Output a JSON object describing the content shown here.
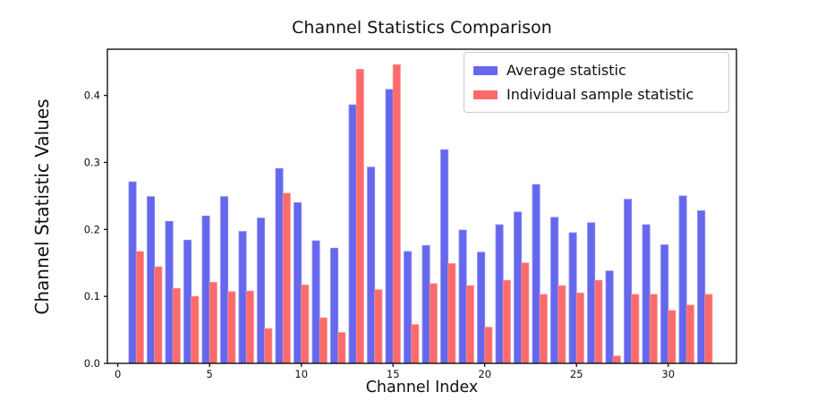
{
  "chart_data": {
    "type": "bar",
    "title": "Channel Statistics Comparison",
    "xlabel": "Channel Index",
    "ylabel": "Channel Statistic Values",
    "x": [
      1,
      2,
      3,
      4,
      5,
      6,
      7,
      8,
      9,
      10,
      11,
      12,
      13,
      14,
      15,
      16,
      17,
      18,
      19,
      20,
      21,
      22,
      23,
      24,
      25,
      26,
      27,
      28,
      29,
      30,
      31,
      32
    ],
    "series": [
      {
        "name": "Average statistic",
        "color": "#6567ec",
        "edge_color": "#8a8bf2",
        "values": [
          0.271,
          0.249,
          0.212,
          0.184,
          0.22,
          0.249,
          0.197,
          0.217,
          0.291,
          0.24,
          0.183,
          0.172,
          0.386,
          0.293,
          0.409,
          0.167,
          0.176,
          0.319,
          0.199,
          0.166,
          0.207,
          0.226,
          0.267,
          0.218,
          0.195,
          0.21,
          0.138,
          0.245,
          0.207,
          0.177,
          0.25,
          0.228
        ]
      },
      {
        "name": "Individual sample statistic",
        "color": "#fb6b6b",
        "edge_color": "#fc9090",
        "values": [
          0.167,
          0.144,
          0.112,
          0.1,
          0.121,
          0.107,
          0.108,
          0.052,
          0.254,
          0.117,
          0.068,
          0.046,
          0.439,
          0.11,
          0.446,
          0.058,
          0.119,
          0.149,
          0.116,
          0.054,
          0.124,
          0.15,
          0.103,
          0.116,
          0.105,
          0.124,
          0.011,
          0.103,
          0.103,
          0.079,
          0.087,
          0.103
        ]
      }
    ],
    "bar_width": 0.4,
    "group_offsets": [
      -0.2,
      0.2
    ],
    "xticks": [
      "0",
      "5",
      "10",
      "15",
      "20",
      "25",
      "30"
    ],
    "xtick_values": [
      0,
      5,
      10,
      15,
      20,
      25,
      30
    ],
    "yticks": [
      "0.0",
      "0.1",
      "0.2",
      "0.3",
      "0.4"
    ],
    "ytick_values": [
      0.0,
      0.1,
      0.2,
      0.3,
      0.4
    ],
    "xlim": [
      -0.57,
      33.72
    ],
    "ylim": [
      0,
      0.469
    ],
    "grid": false,
    "legend_position": "upper right",
    "axis_color": "#000000",
    "tick_label_color": "#111111"
  }
}
